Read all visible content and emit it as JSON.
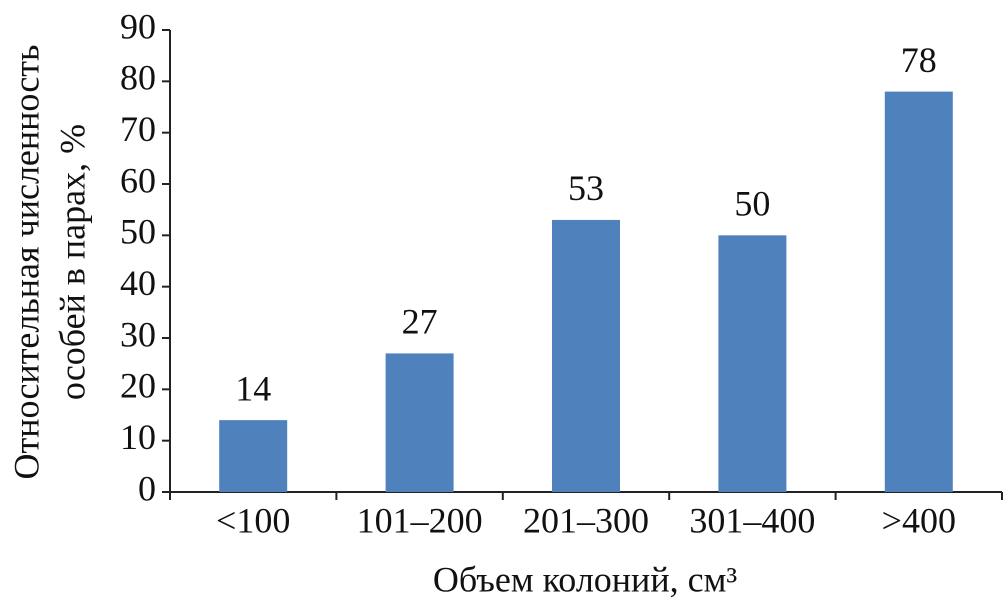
{
  "chart_data": {
    "type": "bar",
    "y_label": [
      "Относительная численность",
      "особей в парах, %"
    ],
    "x_label": "Объем колоний, см³",
    "categories": [
      "<100",
      "101–200",
      "201–300",
      "301–400",
      ">400"
    ],
    "values": [
      14,
      27,
      53,
      50,
      78
    ],
    "color": "#4f81bd",
    "ylim": [
      0,
      90
    ],
    "yticks": [
      0,
      10,
      20,
      30,
      40,
      50,
      60,
      70,
      80,
      90
    ],
    "grid": false
  }
}
